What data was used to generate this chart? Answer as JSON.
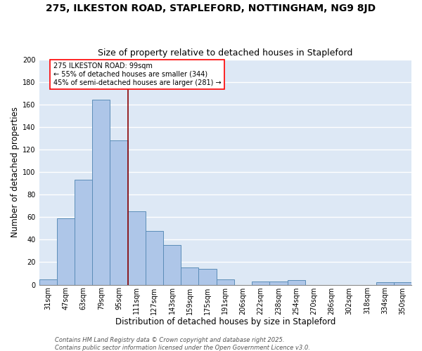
{
  "title_line1": "275, ILKESTON ROAD, STAPLEFORD, NOTTINGHAM, NG9 8JD",
  "title_line2": "Size of property relative to detached houses in Stapleford",
  "xlabel": "Distribution of detached houses by size in Stapleford",
  "ylabel": "Number of detached properties",
  "categories": [
    "31sqm",
    "47sqm",
    "63sqm",
    "79sqm",
    "95sqm",
    "111sqm",
    "127sqm",
    "143sqm",
    "159sqm",
    "175sqm",
    "191sqm",
    "206sqm",
    "222sqm",
    "238sqm",
    "254sqm",
    "270sqm",
    "286sqm",
    "302sqm",
    "318sqm",
    "334sqm",
    "350sqm"
  ],
  "values": [
    5,
    59,
    93,
    164,
    128,
    65,
    48,
    35,
    15,
    14,
    5,
    0,
    3,
    3,
    4,
    0,
    0,
    0,
    0,
    2,
    2
  ],
  "bar_color": "#aec6e8",
  "bar_edge_color": "#5b8db8",
  "vline_x": 4.5,
  "vline_color": "#8b0000",
  "annotation_text": "275 ILKESTON ROAD: 99sqm\n← 55% of detached houses are smaller (344)\n45% of semi-detached houses are larger (281) →",
  "annotation_box_color": "white",
  "annotation_box_edge_color": "red",
  "ylim": [
    0,
    200
  ],
  "yticks": [
    0,
    20,
    40,
    60,
    80,
    100,
    120,
    140,
    160,
    180,
    200
  ],
  "background_color": "#dde8f5",
  "grid_color": "white",
  "footer_line1": "Contains HM Land Registry data © Crown copyright and database right 2025.",
  "footer_line2": "Contains public sector information licensed under the Open Government Licence v3.0.",
  "title_fontsize": 10,
  "subtitle_fontsize": 9,
  "xlabel_fontsize": 8.5,
  "ylabel_fontsize": 8.5,
  "tick_fontsize": 7,
  "annotation_fontsize": 7,
  "footer_fontsize": 6
}
